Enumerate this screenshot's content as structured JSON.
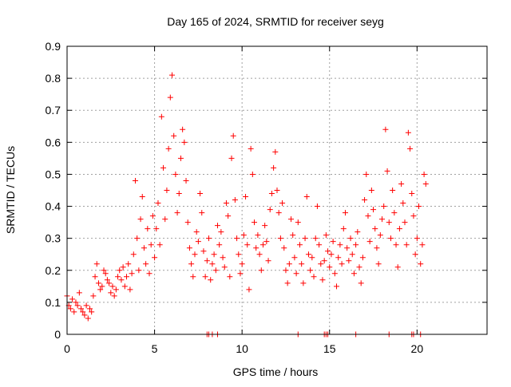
{
  "chart_data": {
    "type": "scatter",
    "title": "Day 165 of 2024, SRMTID for receiver seyg",
    "xlabel": "GPS time / hours",
    "ylabel": "SRMTID / TECUs",
    "xlim": [
      0,
      24
    ],
    "ylim": [
      0,
      0.9
    ],
    "xticks": [
      0,
      5,
      10,
      15,
      20
    ],
    "xtick_labels": [
      "0",
      "5",
      "10",
      "15",
      "20"
    ],
    "yticks": [
      0,
      0.1,
      0.2,
      0.3,
      0.4,
      0.5,
      0.6,
      0.7,
      0.8,
      0.9
    ],
    "ytick_labels": [
      "0",
      "0.1",
      "0.2",
      "0.3",
      "0.4",
      "0.5",
      "0.6",
      "0.7",
      "0.8",
      "0.9"
    ],
    "grid": true,
    "marker": "plus",
    "color": "#ff0000",
    "series": [
      {
        "name": "SRMTID",
        "points": [
          [
            0.0,
            0.12
          ],
          [
            0.1,
            0.09
          ],
          [
            0.2,
            0.08
          ],
          [
            0.3,
            0.11
          ],
          [
            0.4,
            0.07
          ],
          [
            0.5,
            0.1
          ],
          [
            0.6,
            0.09
          ],
          [
            0.7,
            0.13
          ],
          [
            0.8,
            0.08
          ],
          [
            0.9,
            0.07
          ],
          [
            1.0,
            0.06
          ],
          [
            1.1,
            0.09
          ],
          [
            1.2,
            0.05
          ],
          [
            1.3,
            0.08
          ],
          [
            1.4,
            0.07
          ],
          [
            1.5,
            0.12
          ],
          [
            1.6,
            0.18
          ],
          [
            1.7,
            0.22
          ],
          [
            1.8,
            0.16
          ],
          [
            1.9,
            0.14
          ],
          [
            2.0,
            0.15
          ],
          [
            2.1,
            0.2
          ],
          [
            2.2,
            0.19
          ],
          [
            2.3,
            0.17
          ],
          [
            2.4,
            0.16
          ],
          [
            2.5,
            0.13
          ],
          [
            2.6,
            0.15
          ],
          [
            2.7,
            0.12
          ],
          [
            2.8,
            0.14
          ],
          [
            2.9,
            0.18
          ],
          [
            3.0,
            0.2
          ],
          [
            3.1,
            0.17
          ],
          [
            3.2,
            0.21
          ],
          [
            3.3,
            0.15
          ],
          [
            3.4,
            0.18
          ],
          [
            3.5,
            0.22
          ],
          [
            3.6,
            0.14
          ],
          [
            3.7,
            0.19
          ],
          [
            3.8,
            0.25
          ],
          [
            3.9,
            0.48
          ],
          [
            4.0,
            0.3
          ],
          [
            4.1,
            0.2
          ],
          [
            4.2,
            0.36
          ],
          [
            4.3,
            0.43
          ],
          [
            4.4,
            0.27
          ],
          [
            4.5,
            0.22
          ],
          [
            4.6,
            0.33
          ],
          [
            4.7,
            0.19
          ],
          [
            4.8,
            0.28
          ],
          [
            4.9,
            0.37
          ],
          [
            5.0,
            0.24
          ],
          [
            5.1,
            0.33
          ],
          [
            5.2,
            0.41
          ],
          [
            5.3,
            0.28
          ],
          [
            5.4,
            0.68
          ],
          [
            5.5,
            0.52
          ],
          [
            5.6,
            0.36
          ],
          [
            5.7,
            0.45
          ],
          [
            5.8,
            0.58
          ],
          [
            5.9,
            0.74
          ],
          [
            6.0,
            0.81
          ],
          [
            6.1,
            0.62
          ],
          [
            6.2,
            0.5
          ],
          [
            6.3,
            0.38
          ],
          [
            6.4,
            0.44
          ],
          [
            6.5,
            0.55
          ],
          [
            6.6,
            0.64
          ],
          [
            6.7,
            0.6
          ],
          [
            6.8,
            0.48
          ],
          [
            6.9,
            0.35
          ],
          [
            7.0,
            0.27
          ],
          [
            7.1,
            0.22
          ],
          [
            7.2,
            0.18
          ],
          [
            7.3,
            0.25
          ],
          [
            7.4,
            0.32
          ],
          [
            7.5,
            0.29
          ],
          [
            7.6,
            0.44
          ],
          [
            7.7,
            0.38
          ],
          [
            7.8,
            0.26
          ],
          [
            7.9,
            0.18
          ],
          [
            8.0,
            0.23
          ],
          [
            8.1,
            0.3
          ],
          [
            8.2,
            0.17
          ],
          [
            8.3,
            0.22
          ],
          [
            8.4,
            0.25
          ],
          [
            8.5,
            0.2
          ],
          [
            8.6,
            0.34
          ],
          [
            8.7,
            0.28
          ],
          [
            8.8,
            0.32
          ],
          [
            8.9,
            0.24
          ],
          [
            9.0,
            0.21
          ],
          [
            9.1,
            0.41
          ],
          [
            9.2,
            0.37
          ],
          [
            9.3,
            0.18
          ],
          [
            9.4,
            0.55
          ],
          [
            9.5,
            0.62
          ],
          [
            9.6,
            0.42
          ],
          [
            9.7,
            0.3
          ],
          [
            9.8,
            0.25
          ],
          [
            9.9,
            0.19
          ],
          [
            10.0,
            0.22
          ],
          [
            10.1,
            0.31
          ],
          [
            10.2,
            0.43
          ],
          [
            10.3,
            0.28
          ],
          [
            10.4,
            0.14
          ],
          [
            10.5,
            0.58
          ],
          [
            10.6,
            0.5
          ],
          [
            10.7,
            0.35
          ],
          [
            10.8,
            0.27
          ],
          [
            10.9,
            0.31
          ],
          [
            11.0,
            0.25
          ],
          [
            11.1,
            0.2
          ],
          [
            11.2,
            0.28
          ],
          [
            11.3,
            0.34
          ],
          [
            11.4,
            0.29
          ],
          [
            11.5,
            0.23
          ],
          [
            11.6,
            0.39
          ],
          [
            11.7,
            0.44
          ],
          [
            11.8,
            0.52
          ],
          [
            11.9,
            0.57
          ],
          [
            12.0,
            0.45
          ],
          [
            12.1,
            0.38
          ],
          [
            12.2,
            0.3
          ],
          [
            12.3,
            0.41
          ],
          [
            12.4,
            0.27
          ],
          [
            12.5,
            0.2
          ],
          [
            12.6,
            0.16
          ],
          [
            12.7,
            0.22
          ],
          [
            12.8,
            0.36
          ],
          [
            12.9,
            0.31
          ],
          [
            13.0,
            0.24
          ],
          [
            13.1,
            0.19
          ],
          [
            13.2,
            0.35
          ],
          [
            13.3,
            0.28
          ],
          [
            13.4,
            0.22
          ],
          [
            13.5,
            0.16
          ],
          [
            13.6,
            0.3
          ],
          [
            13.7,
            0.43
          ],
          [
            13.8,
            0.25
          ],
          [
            13.9,
            0.2
          ],
          [
            14.0,
            0.24
          ],
          [
            14.1,
            0.18
          ],
          [
            14.2,
            0.3
          ],
          [
            14.3,
            0.4
          ],
          [
            14.4,
            0.28
          ],
          [
            14.5,
            0.22
          ],
          [
            14.6,
            0.17
          ],
          [
            14.7,
            0.23
          ],
          [
            14.8,
            0.31
          ],
          [
            14.9,
            0.26
          ],
          [
            15.0,
            0.21
          ],
          [
            15.1,
            0.25
          ],
          [
            15.2,
            0.29
          ],
          [
            15.3,
            0.19
          ],
          [
            15.4,
            0.15
          ],
          [
            15.5,
            0.24
          ],
          [
            15.6,
            0.28
          ],
          [
            15.7,
            0.22
          ],
          [
            15.8,
            0.33
          ],
          [
            15.9,
            0.38
          ],
          [
            16.0,
            0.27
          ],
          [
            16.1,
            0.23
          ],
          [
            16.2,
            0.3
          ],
          [
            16.3,
            0.25
          ],
          [
            16.4,
            0.19
          ],
          [
            16.5,
            0.28
          ],
          [
            16.6,
            0.32
          ],
          [
            16.7,
            0.21
          ],
          [
            16.8,
            0.16
          ],
          [
            16.9,
            0.24
          ],
          [
            17.0,
            0.42
          ],
          [
            17.1,
            0.5
          ],
          [
            17.2,
            0.37
          ],
          [
            17.3,
            0.29
          ],
          [
            17.4,
            0.45
          ],
          [
            17.5,
            0.39
          ],
          [
            17.6,
            0.33
          ],
          [
            17.7,
            0.27
          ],
          [
            17.8,
            0.22
          ],
          [
            17.9,
            0.31
          ],
          [
            18.0,
            0.36
          ],
          [
            18.1,
            0.4
          ],
          [
            18.2,
            0.64
          ],
          [
            18.3,
            0.51
          ],
          [
            18.4,
            0.35
          ],
          [
            18.5,
            0.3
          ],
          [
            18.6,
            0.45
          ],
          [
            18.7,
            0.38
          ],
          [
            18.8,
            0.28
          ],
          [
            18.9,
            0.21
          ],
          [
            19.0,
            0.33
          ],
          [
            19.1,
            0.47
          ],
          [
            19.2,
            0.41
          ],
          [
            19.3,
            0.35
          ],
          [
            19.4,
            0.28
          ],
          [
            19.5,
            0.63
          ],
          [
            19.6,
            0.58
          ],
          [
            19.7,
            0.44
          ],
          [
            19.8,
            0.37
          ],
          [
            19.9,
            0.25
          ],
          [
            20.0,
            0.3
          ],
          [
            20.1,
            0.4
          ],
          [
            20.2,
            0.22
          ],
          [
            20.3,
            0.28
          ],
          [
            20.4,
            0.5
          ],
          [
            20.5,
            0.47
          ]
        ]
      }
    ],
    "zero_value_times": [
      8.0,
      8.1,
      8.3,
      8.6,
      13.2,
      14.7,
      14.8,
      14.9,
      16.5,
      18.4,
      19.7,
      19.8,
      20.2
    ]
  }
}
